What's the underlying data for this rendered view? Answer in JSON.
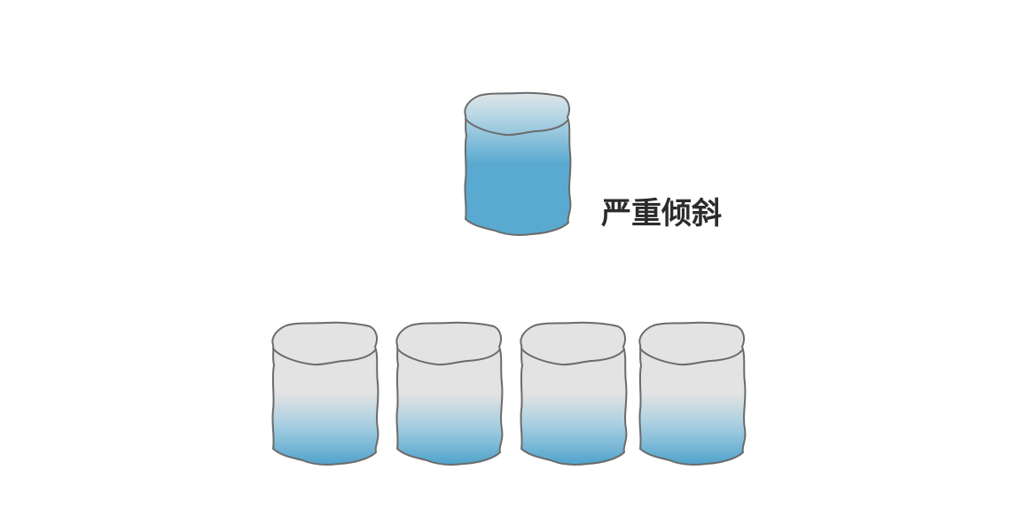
{
  "diagram": {
    "annotation": "严重倾斜",
    "icon": "database-cylinder-icon",
    "colors": {
      "fill_blue": "#5aa9d0",
      "fill_light": "#e3e3e3",
      "top_light": "#dde3e6",
      "outline": "#6b6b6b",
      "text": "#2b2b2b"
    },
    "top_node": {
      "fill_level": 0.85
    },
    "bottom_nodes": [
      {
        "fill_level": 0.45
      },
      {
        "fill_level": 0.45
      },
      {
        "fill_level": 0.45
      },
      {
        "fill_level": 0.45
      }
    ]
  }
}
